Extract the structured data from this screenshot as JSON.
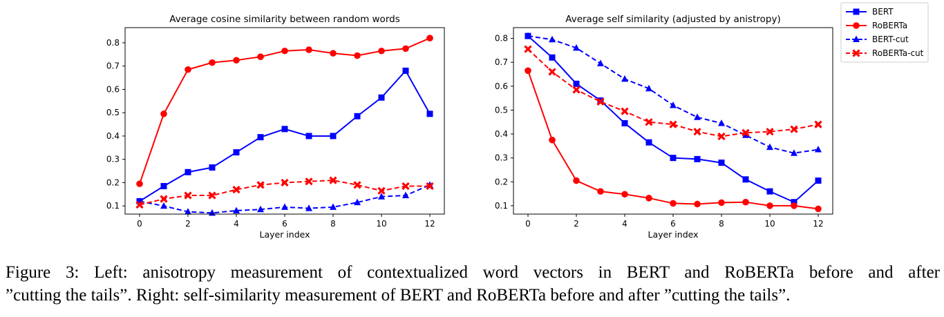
{
  "chart_data": [
    {
      "type": "line",
      "title": "Average cosine similarity between random words",
      "xlabel": "Layer index",
      "ylabel": "",
      "xlim": [
        -0.6,
        12.6
      ],
      "ylim": [
        0.065,
        0.865
      ],
      "xticks": [
        0,
        2,
        4,
        6,
        8,
        10,
        12
      ],
      "yticks": [
        0.1,
        0.2,
        0.3,
        0.4,
        0.5,
        0.6,
        0.7,
        0.8
      ],
      "x": [
        0,
        1,
        2,
        3,
        4,
        5,
        6,
        7,
        8,
        9,
        10,
        11,
        12
      ],
      "grid": false,
      "series": [
        {
          "name": "BERT",
          "color": "#0000ff",
          "dash": "solid",
          "marker": "square",
          "values": [
            0.12,
            0.185,
            0.245,
            0.265,
            0.33,
            0.395,
            0.43,
            0.4,
            0.4,
            0.485,
            0.565,
            0.68,
            0.495
          ]
        },
        {
          "name": "RoBERTa",
          "color": "#ff0000",
          "dash": "solid",
          "marker": "circle",
          "values": [
            0.195,
            0.495,
            0.685,
            0.715,
            0.725,
            0.74,
            0.765,
            0.77,
            0.755,
            0.745,
            0.765,
            0.775,
            0.82
          ]
        },
        {
          "name": "BERT-cut",
          "color": "#0000ff",
          "dash": "dashed",
          "marker": "triangle",
          "values": [
            0.12,
            0.1,
            0.075,
            0.07,
            0.08,
            0.085,
            0.095,
            0.09,
            0.095,
            0.115,
            0.14,
            0.145,
            0.19
          ]
        },
        {
          "name": "RoBERTa-cut",
          "color": "#ff0000",
          "dash": "dashed",
          "marker": "x",
          "values": [
            0.105,
            0.13,
            0.145,
            0.145,
            0.17,
            0.19,
            0.2,
            0.205,
            0.21,
            0.19,
            0.165,
            0.185,
            0.185
          ]
        }
      ]
    },
    {
      "type": "line",
      "title": "Average self similarity (adjusted by anistropy)",
      "xlabel": "Layer index",
      "ylabel": "",
      "xlim": [
        -0.6,
        12.6
      ],
      "ylim": [
        0.065,
        0.845
      ],
      "xticks": [
        0,
        2,
        4,
        6,
        8,
        10,
        12
      ],
      "yticks": [
        0.1,
        0.2,
        0.3,
        0.4,
        0.5,
        0.6,
        0.7,
        0.8
      ],
      "x": [
        0,
        1,
        2,
        3,
        4,
        5,
        6,
        7,
        8,
        9,
        10,
        11,
        12
      ],
      "grid": false,
      "legend": "outside-top-right",
      "series": [
        {
          "name": "BERT",
          "color": "#0000ff",
          "dash": "solid",
          "marker": "square",
          "values": [
            0.81,
            0.72,
            0.61,
            0.54,
            0.445,
            0.365,
            0.3,
            0.295,
            0.28,
            0.21,
            0.16,
            0.115,
            0.205
          ]
        },
        {
          "name": "RoBERTa",
          "color": "#ff0000",
          "dash": "solid",
          "marker": "circle",
          "values": [
            0.665,
            0.375,
            0.205,
            0.16,
            0.148,
            0.132,
            0.11,
            0.107,
            0.113,
            0.115,
            0.1,
            0.1,
            0.087
          ]
        },
        {
          "name": "BERT-cut",
          "color": "#0000ff",
          "dash": "dashed",
          "marker": "triangle",
          "values": [
            0.81,
            0.795,
            0.76,
            0.695,
            0.63,
            0.59,
            0.52,
            0.47,
            0.445,
            0.395,
            0.345,
            0.32,
            0.335
          ]
        },
        {
          "name": "RoBERTa-cut",
          "color": "#ff0000",
          "dash": "dashed",
          "marker": "x",
          "values": [
            0.755,
            0.66,
            0.585,
            0.535,
            0.495,
            0.45,
            0.44,
            0.41,
            0.39,
            0.405,
            0.41,
            0.42,
            0.44
          ]
        }
      ]
    }
  ],
  "caption": {
    "line1": "Figure 3: Left: anisotropy measurement of contextualized word vectors in BERT and RoBERTa before and after",
    "line2": "”cutting the tails”. Right: self-similarity measurement of BERT and RoBERTa before and after ”cutting the tails”."
  }
}
